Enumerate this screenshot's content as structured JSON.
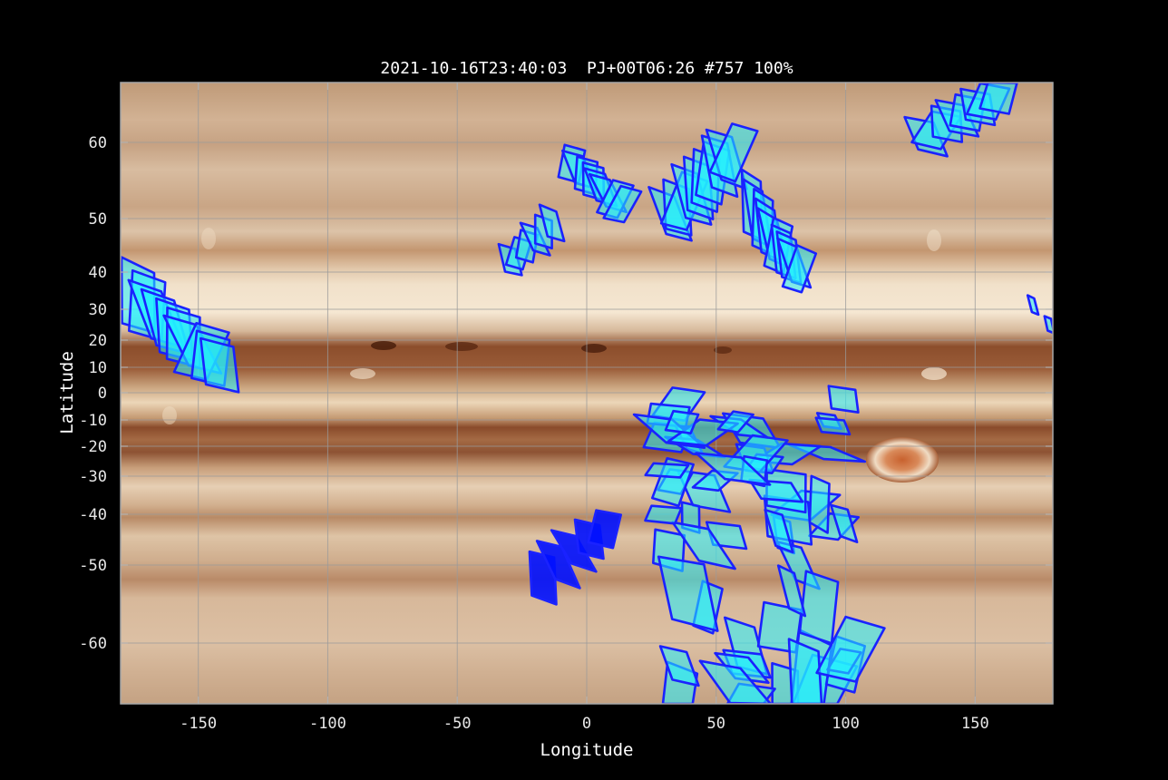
{
  "chart_data": {
    "type": "scatter",
    "title": "2021-10-16T23:40:03  PJ+00T06:26 #757 100%",
    "xlabel": "Longitude",
    "ylabel": "Latitude",
    "xlim": [
      -180,
      180
    ],
    "ylim": [
      -70,
      70
    ],
    "y_scale": "planetographic (non-linear)",
    "grid": true,
    "background": "Jupiter cylindrical map",
    "x_ticks": [
      -150,
      -100,
      -50,
      0,
      50,
      100,
      150
    ],
    "y_ticks": [
      60,
      50,
      40,
      30,
      20,
      10,
      0,
      -10,
      -20,
      -30,
      -40,
      -50,
      -60
    ],
    "x_tick_labels": [
      "-150",
      "-100",
      "-50",
      "0",
      "50",
      "100",
      "150"
    ],
    "y_tick_labels": [
      "60",
      "50",
      "40",
      "30",
      "20",
      "10",
      "0",
      "-10",
      "-20",
      "-30",
      "-40",
      "-50",
      "-60"
    ],
    "footprint_stroke": "#1a22ff",
    "footprint_fill_light": "#22f0ff",
    "footprint_fill_dark": "#0010ff",
    "footprint_groups": [
      {
        "lon_range": [
          -180,
          -135
        ],
        "lat_range": [
          3,
          40
        ],
        "count": 10,
        "style": "light"
      },
      {
        "lon_range": [
          -33,
          -10
        ],
        "lat_range": [
          40,
          51
        ],
        "count": 6,
        "style": "light"
      },
      {
        "lon_range": [
          -10,
          18
        ],
        "lat_range": [
          50,
          59
        ],
        "count": 8,
        "style": "light"
      },
      {
        "lon_range": [
          27,
          62
        ],
        "lat_range": [
          47,
          62
        ],
        "count": 10,
        "style": "light"
      },
      {
        "lon_range": [
          60,
          86
        ],
        "lat_range": [
          36,
          55
        ],
        "count": 10,
        "style": "light"
      },
      {
        "lon_range": [
          125,
          165
        ],
        "lat_range": [
          59,
          70
        ],
        "count": 8,
        "style": "light"
      },
      {
        "lon_range": [
          171,
          180
        ],
        "lat_range": [
          23,
          33
        ],
        "count": 2,
        "style": "light"
      },
      {
        "lon_range": [
          -22,
          12
        ],
        "lat_range": [
          -54,
          -40
        ],
        "count": 5,
        "style": "dark"
      },
      {
        "lon_range": [
          15,
          112
        ],
        "lat_range": [
          -70,
          -1
        ],
        "count": 60,
        "style": "light"
      }
    ]
  }
}
